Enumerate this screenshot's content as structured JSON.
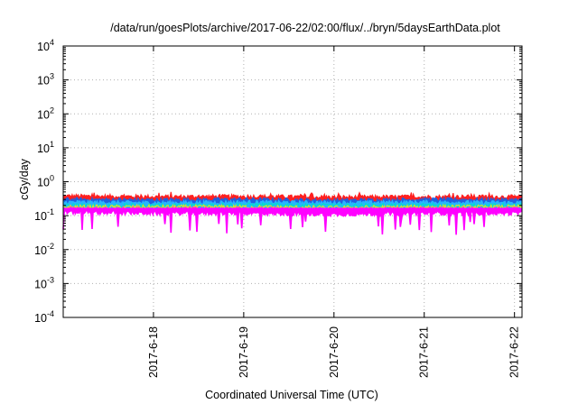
{
  "chart_data": {
    "type": "line",
    "title": "/data/run/goesPlots/archive/2017-06-22/02:00/flux/../bryn/5daysEarthData.plot",
    "xlabel": "Coordinated Universal Time (UTC)",
    "ylabel": "cGy/day",
    "yscale": "log",
    "ylim": [
      0.0001,
      10000
    ],
    "xlim": [
      "2017-06-17",
      "2017-06-22 02:00"
    ],
    "grid": true,
    "x_ticks": [
      "2017-6-18",
      "2017-6-19",
      "2017-6-20",
      "2017-6-21",
      "2017-6-22"
    ],
    "y_ticks": [
      {
        "base": "10",
        "exp": "-4"
      },
      {
        "base": "10",
        "exp": "-3"
      },
      {
        "base": "10",
        "exp": "-2"
      },
      {
        "base": "10",
        "exp": "-1"
      },
      {
        "base": "10",
        "exp": "0"
      },
      {
        "base": "10",
        "exp": "1"
      },
      {
        "base": "10",
        "exp": "2"
      },
      {
        "base": "10",
        "exp": "3"
      },
      {
        "base": "10",
        "exp": "4"
      }
    ],
    "series": [
      {
        "color": "#ff2020",
        "x": [
          "2017-06-17",
          "2017-06-18",
          "2017-06-19",
          "2017-06-20",
          "2017-06-21",
          "2017-06-22 02:00"
        ],
        "values": [
          0.38,
          0.36,
          0.37,
          0.35,
          0.36,
          0.36
        ]
      },
      {
        "color": "#1f5fe0",
        "x": [
          "2017-06-17",
          "2017-06-18",
          "2017-06-19",
          "2017-06-20",
          "2017-06-21",
          "2017-06-22 02:00"
        ],
        "values": [
          0.3,
          0.29,
          0.3,
          0.28,
          0.3,
          0.29
        ]
      },
      {
        "color": "#28b4ff",
        "x": [
          "2017-06-17",
          "2017-06-18",
          "2017-06-19",
          "2017-06-20",
          "2017-06-21",
          "2017-06-22 02:00"
        ],
        "values": [
          0.25,
          0.24,
          0.25,
          0.24,
          0.25,
          0.24
        ]
      },
      {
        "color": "#00e0c8",
        "x": [
          "2017-06-17",
          "2017-06-18",
          "2017-06-19",
          "2017-06-20",
          "2017-06-21",
          "2017-06-22 02:00"
        ],
        "values": [
          0.2,
          0.2,
          0.21,
          0.2,
          0.2,
          0.2
        ]
      },
      {
        "color": "#e8e020",
        "x": [
          "2017-06-17",
          "2017-06-18",
          "2017-06-19",
          "2017-06-20",
          "2017-06-21",
          "2017-06-22 02:00"
        ],
        "values": [
          0.18,
          0.18,
          0.18,
          0.17,
          0.18,
          0.18
        ]
      },
      {
        "color": "#ff3cb4",
        "x": [
          "2017-06-17",
          "2017-06-18",
          "2017-06-19",
          "2017-06-20",
          "2017-06-21",
          "2017-06-22 02:00"
        ],
        "values": [
          0.16,
          0.16,
          0.16,
          0.15,
          0.16,
          0.16
        ]
      },
      {
        "color": "#ff00ff",
        "x": [
          "2017-06-17",
          "2017-06-18",
          "2017-06-19",
          "2017-06-20",
          "2017-06-21",
          "2017-06-22 02:00"
        ],
        "values": [
          0.13,
          0.12,
          0.12,
          0.11,
          0.12,
          0.12
        ]
      }
    ]
  }
}
